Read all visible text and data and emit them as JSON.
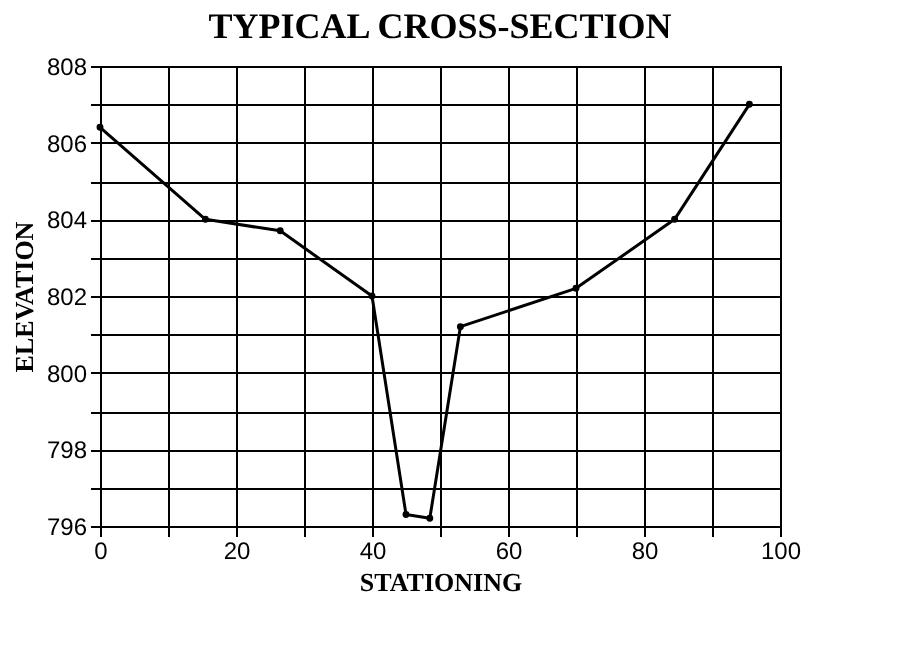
{
  "chart_data": {
    "type": "line",
    "title": "TYPICAL CROSS-SECTION",
    "xlabel": "STATIONING",
    "ylabel": "ELEVATION",
    "x": [
      0,
      15.5,
      26.5,
      40,
      45,
      48.5,
      53,
      70,
      84.5,
      95.5
    ],
    "series": [
      {
        "color": "#000000",
        "values": [
          806.4,
          804,
          803.7,
          802,
          796.3,
          796.2,
          801.2,
          802.2,
          804,
          807
        ]
      }
    ],
    "xlim": [
      0,
      100
    ],
    "ylim": [
      796,
      808
    ],
    "xticks": [
      0,
      {
        "value": 10,
        "label": null
      },
      20,
      {
        "value": 30,
        "label": null
      },
      40,
      {
        "value": 50,
        "label": null
      },
      60,
      {
        "value": 70,
        "label": null
      },
      80,
      {
        "value": 90,
        "label": null
      },
      100
    ],
    "yticks": [
      796,
      {
        "value": 797,
        "label": null
      },
      798,
      {
        "value": 799,
        "label": null
      },
      800,
      {
        "value": 801,
        "label": null
      },
      802,
      {
        "value": 803,
        "label": null
      },
      804,
      {
        "value": 805,
        "label": null
      },
      806,
      {
        "value": 807,
        "label": null
      },
      808
    ],
    "grid": true,
    "marker": "circle",
    "line_style": "solid"
  }
}
